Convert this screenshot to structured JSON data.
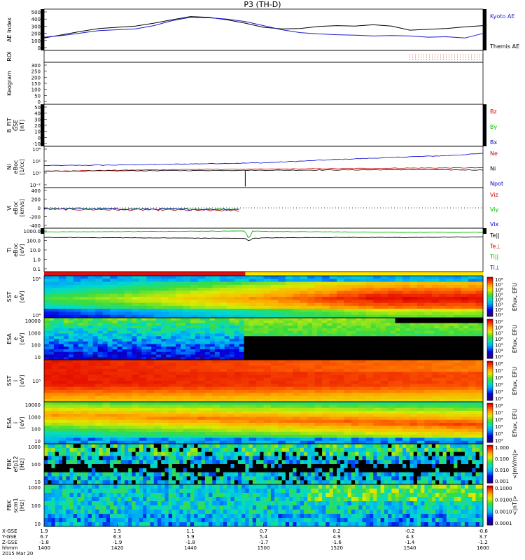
{
  "title": "P3 (TH-D)",
  "chart_data": {
    "type": "multi-panel time series / spectrogram",
    "x_axis": {
      "time_start": "1400",
      "time_end": "1600",
      "rows": [
        {
          "label": "X-GSE",
          "values": [
            "1.9",
            "1.5",
            "1.1",
            "0.7",
            "0.2",
            "-0.2",
            "-0.6"
          ]
        },
        {
          "label": "Y-GSE",
          "values": [
            "6.7",
            "6.3",
            "5.9",
            "5.4",
            "4.9",
            "4.3",
            "3.7"
          ]
        },
        {
          "label": "Z-GSE",
          "values": [
            "-1.8",
            "-1.9",
            "-1.8",
            "-1.7",
            "-1.6",
            "-1.4",
            "-1.2"
          ]
        },
        {
          "label": "hhmm",
          "values": [
            "1400",
            "1420",
            "1440",
            "1500",
            "1520",
            "1540",
            "1600"
          ]
        }
      ],
      "date": "2015 Mar 20"
    },
    "panels": [
      {
        "id": "ae",
        "ylabel": [
          "AE Index"
        ],
        "ticks": [
          "500",
          "400",
          "300",
          "200",
          "100",
          "0"
        ],
        "ylim": [
          0,
          500
        ],
        "legend": [
          {
            "text": "Kyoto AE",
            "color": "#1a1acc"
          },
          {
            "text": "Themis AE",
            "color": "#000000"
          }
        ],
        "series": [
          {
            "name": "Themis AE",
            "color": "#000000",
            "t": [
              0,
              5,
              10,
              15,
              20,
              25,
              30,
              35,
              40,
              45,
              50,
              55,
              60,
              65,
              70,
              75,
              80,
              85,
              90,
              95,
              100,
              105,
              110,
              115,
              120
            ],
            "y": [
              150,
              190,
              230,
              265,
              280,
              295,
              330,
              370,
              410,
              400,
              370,
              330,
              280,
              260,
              265,
              290,
              300,
              295,
              310,
              295,
              245,
              255,
              265,
              285,
              300
            ]
          },
          {
            "name": "Kyoto AE",
            "color": "#1a1acc",
            "t": [
              0,
              5,
              10,
              15,
              20,
              25,
              30,
              35,
              40,
              45,
              50,
              55,
              60,
              65,
              70,
              75,
              80,
              85,
              90,
              95,
              100,
              105,
              110,
              115,
              120
            ],
            "y": [
              160,
              180,
              210,
              240,
              250,
              260,
              300,
              360,
              400,
              395,
              380,
              350,
              300,
              250,
              215,
              200,
              190,
              185,
              175,
              180,
              175,
              160,
              165,
              150,
              205
            ]
          }
        ]
      },
      {
        "id": "roi",
        "ylabel": [
          "ROI"
        ],
        "ticks": [],
        "legend": []
      },
      {
        "id": "keogram",
        "ylabel": [
          "Keogram"
        ],
        "ticks": [
          "300",
          "250",
          "200",
          "150",
          "100",
          "50",
          "0"
        ],
        "ylim": [
          0,
          300
        ],
        "legend": []
      },
      {
        "id": "bfit",
        "ylabel": [
          "B_FIT",
          "GSE",
          "[nT]"
        ],
        "ticks": [
          "50",
          "40",
          "30",
          "20",
          "10",
          "0",
          "-10"
        ],
        "ylim": [
          -10,
          50
        ],
        "legend": [
          {
            "text": "Bz",
            "color": "#cc0000"
          },
          {
            "text": "By",
            "color": "#00bb00"
          },
          {
            "text": "Bx",
            "color": "#0000cc"
          }
        ]
      },
      {
        "id": "ni",
        "ylabel": [
          "Ni",
          "eBoc",
          "[1/cc]"
        ],
        "ticks": [
          "10⁴",
          "10²",
          "10⁰",
          "10⁻²"
        ],
        "ylim_log": [
          -3,
          4.5
        ],
        "legend": [
          {
            "text": "Ne",
            "color": "#cc0000"
          },
          {
            "text": "Ni",
            "color": "#000000"
          },
          {
            "text": "Npot",
            "color": "#0000cc"
          }
        ],
        "series": [
          {
            "name": "Npot",
            "color": "#0000cc",
            "t": [
              0,
              20,
              40,
              60,
              80,
              100,
              110,
              120
            ],
            "y": [
              1.0,
              1.1,
              1.3,
              1.5,
              2.1,
              2.6,
              2.8,
              3.2
            ]
          },
          {
            "name": "Ne",
            "color": "#cc0000",
            "t": [
              0,
              20,
              40,
              60,
              80,
              100,
              120
            ],
            "y": [
              0.0,
              0.15,
              0.3,
              0.35,
              0.45,
              0.55,
              0.6
            ]
          },
          {
            "name": "Ni",
            "color": "#000000",
            "t": [
              0,
              20,
              40,
              60,
              80,
              100,
              120
            ],
            "y": [
              0.0,
              0.05,
              0.1,
              0.15,
              0.2,
              0.25,
              0.2
            ]
          }
        ]
      },
      {
        "id": "vi",
        "ylabel": [
          "Vi",
          "eBoc",
          "[km/s]"
        ],
        "ticks": [
          "400",
          "200",
          "0",
          "-200",
          "-400"
        ],
        "ylim": [
          -400,
          400
        ],
        "legend": [
          {
            "text": "Viz",
            "color": "#cc0000"
          },
          {
            "text": "Viy",
            "color": "#00bb00"
          },
          {
            "text": "Vix",
            "color": "#0000cc"
          }
        ]
      },
      {
        "id": "ti",
        "ylabel": [
          "Ti",
          "eBoc",
          "[eV]"
        ],
        "ticks": [
          "1000.0",
          "100.0",
          "10.0",
          "1.0",
          "0.1"
        ],
        "ylim_log": [
          -1.3,
          3.4
        ],
        "legend": [
          {
            "text": "Te||",
            "color": "#000000"
          },
          {
            "text": "Te⊥",
            "color": "#cc0000"
          },
          {
            "text": "Ti||",
            "color": "#00bb00"
          },
          {
            "text": "Ti⊥",
            "color": "#0000cc"
          }
        ],
        "series": [
          {
            "name": "Ti||",
            "color": "#00bb00",
            "t": [
              0,
              30,
              55,
              56,
              57,
              60,
              80,
              100,
              120
            ],
            "y": [
              3.0,
              3.05,
              3.1,
              2.2,
              3.1,
              3.05,
              3.0,
              2.95,
              2.95
            ]
          },
          {
            "name": "Te||",
            "color": "#000000",
            "t": [
              0,
              30,
              55,
              56,
              57,
              60,
              80,
              100,
              120
            ],
            "y": [
              2.4,
              2.35,
              2.3,
              2.0,
              2.3,
              2.35,
              2.4,
              2.4,
              2.45
            ]
          }
        ]
      },
      {
        "id": "sst_e",
        "ylabel": [
          "SST",
          "e",
          "[eV]"
        ],
        "ticks": [
          "10⁶",
          "10⁴"
        ],
        "cbar_label": "Eflux, EFU",
        "cbar_ticks": [
          "10⁸",
          "10⁷",
          "10⁶",
          "10⁵",
          "10⁴",
          "10³",
          "10²",
          "10¹"
        ]
      },
      {
        "id": "esa_e",
        "ylabel": [
          "ESA",
          "e",
          "[eV]"
        ],
        "ticks": [
          "10000",
          "1000",
          "100",
          "10"
        ],
        "cbar_label": "Eflux, EFU",
        "cbar_ticks": [
          "10⁹",
          "10⁸",
          "10⁷",
          "10⁶",
          "10⁵",
          "10⁴",
          "10³"
        ]
      },
      {
        "id": "sst_i",
        "ylabel": [
          "SST",
          "i",
          "[eV]"
        ],
        "ticks": [
          "10⁵"
        ],
        "cbar_label": "Eflux, EFU",
        "cbar_ticks": [
          "10⁸",
          "10⁷",
          "10⁶",
          "10⁵",
          "10⁴",
          "10³"
        ]
      },
      {
        "id": "esa_i",
        "ylabel": [
          "ESA",
          "i",
          "[eV]"
        ],
        "ticks": [
          "10000",
          "1000",
          "100",
          "10"
        ],
        "cbar_label": "Eflux, EFU",
        "cbar_ticks": [
          "10⁸",
          "10⁷",
          "10⁶",
          "10⁵",
          "10⁴",
          "10³"
        ]
      },
      {
        "id": "fbk_e12",
        "ylabel": [
          "FBK",
          "efp12",
          "[Hz]"
        ],
        "ticks": [
          "1000",
          "100",
          "10"
        ],
        "cbar_label": "<|mV/m|>",
        "cbar_ticks": [
          "1.000",
          "0.100",
          "0.010",
          "0.001"
        ]
      },
      {
        "id": "fbk_scm",
        "ylabel": [
          "FBK",
          "scm1",
          "[Hz]"
        ],
        "ticks": [
          "1000",
          "100",
          "10"
        ],
        "cbar_label": "<|nT|>",
        "cbar_ticks": [
          "0.1000",
          "0.0100",
          "0.0010",
          "0.0001"
        ]
      }
    ]
  }
}
